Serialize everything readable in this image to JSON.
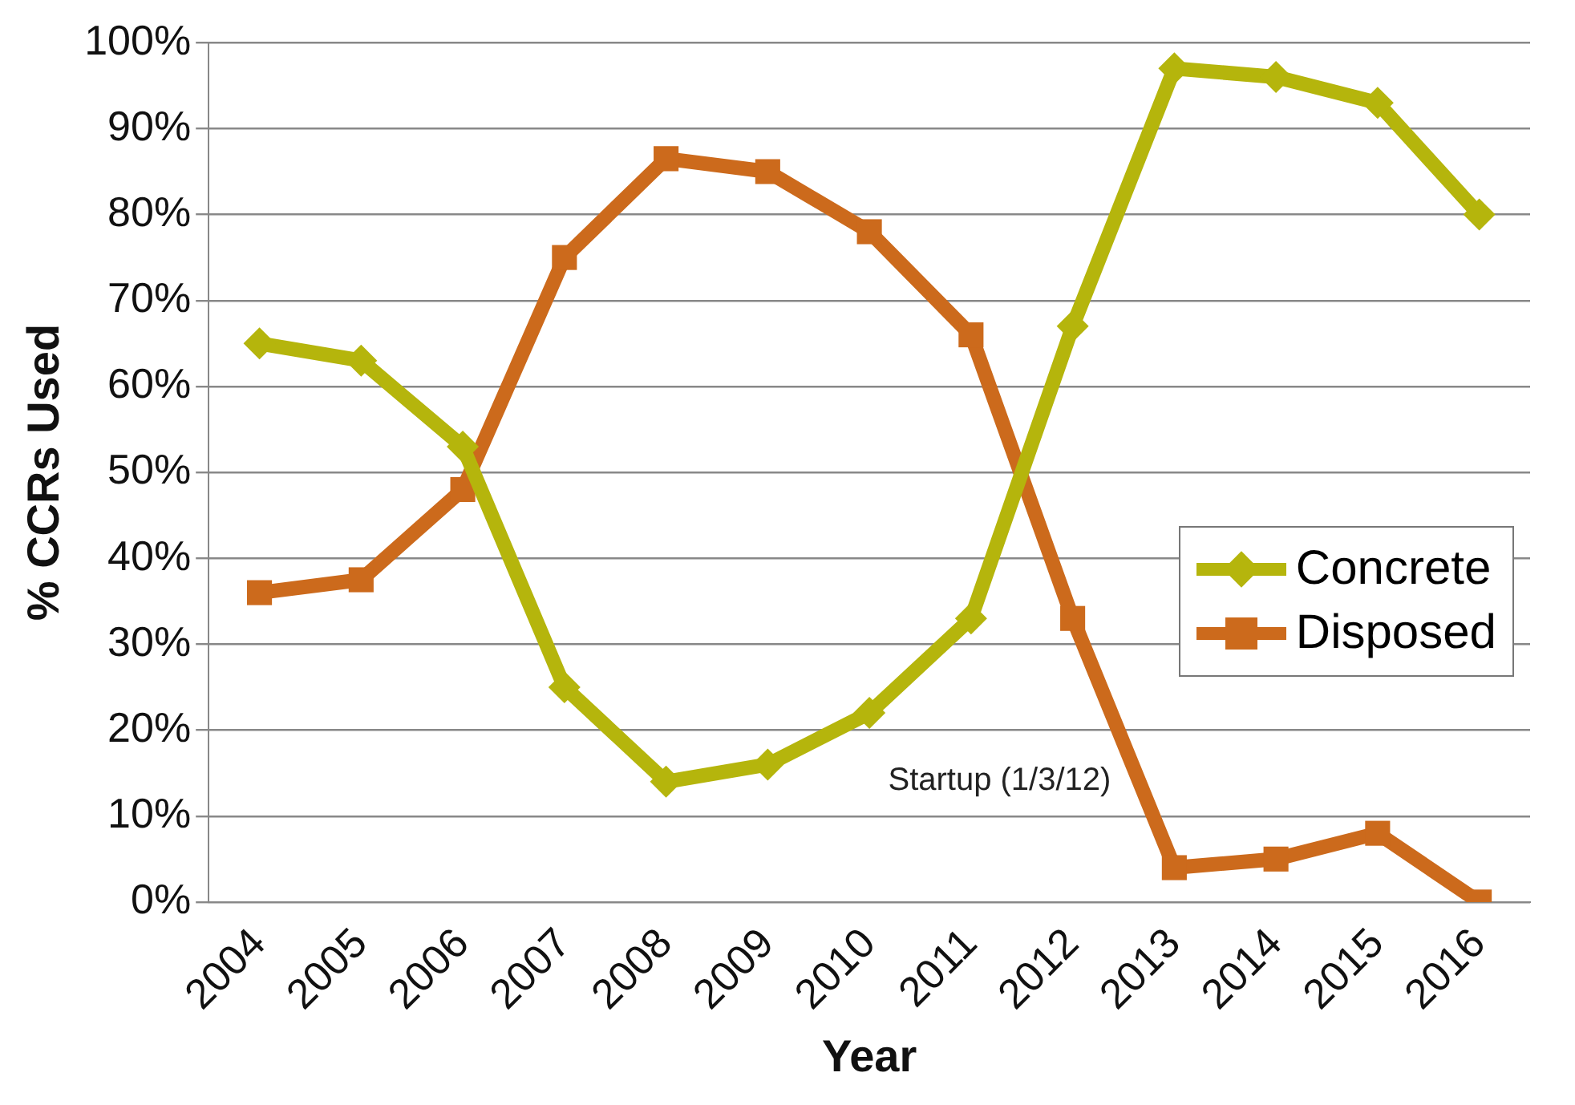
{
  "chart_data": {
    "type": "line",
    "xlabel": "Year",
    "ylabel": "% CCRs Used",
    "categories": [
      "2004",
      "2005",
      "2006",
      "2007",
      "2008",
      "2009",
      "2010",
      "2011",
      "2012",
      "2013",
      "2014",
      "2015",
      "2016"
    ],
    "series": [
      {
        "name": "Concrete",
        "color": "#b5b50c",
        "marker": "diamond",
        "values": [
          65,
          63,
          53,
          25,
          14,
          16,
          22,
          33,
          67,
          97,
          96,
          93,
          80
        ]
      },
      {
        "name": "Disposed",
        "color": "#cc6a1c",
        "marker": "square",
        "values": [
          36,
          37.5,
          48,
          75,
          86.5,
          85,
          78,
          66,
          33,
          4,
          5,
          8,
          0
        ]
      }
    ],
    "ylim": [
      0,
      100
    ],
    "yticks": [
      {
        "value": 0,
        "label": "0%"
      },
      {
        "value": 10,
        "label": "10%"
      },
      {
        "value": 20,
        "label": "20%"
      },
      {
        "value": 30,
        "label": "30%"
      },
      {
        "value": 40,
        "label": "40%"
      },
      {
        "value": 50,
        "label": "50%"
      },
      {
        "value": 60,
        "label": "60%"
      },
      {
        "value": 70,
        "label": "70%"
      },
      {
        "value": 80,
        "label": "80%"
      },
      {
        "value": 90,
        "label": "90%"
      },
      {
        "value": 100,
        "label": "100%"
      }
    ],
    "grid": "y",
    "legend": "right",
    "line_style": "solid",
    "annotations": [
      "Startup (1/3/12)"
    ]
  }
}
